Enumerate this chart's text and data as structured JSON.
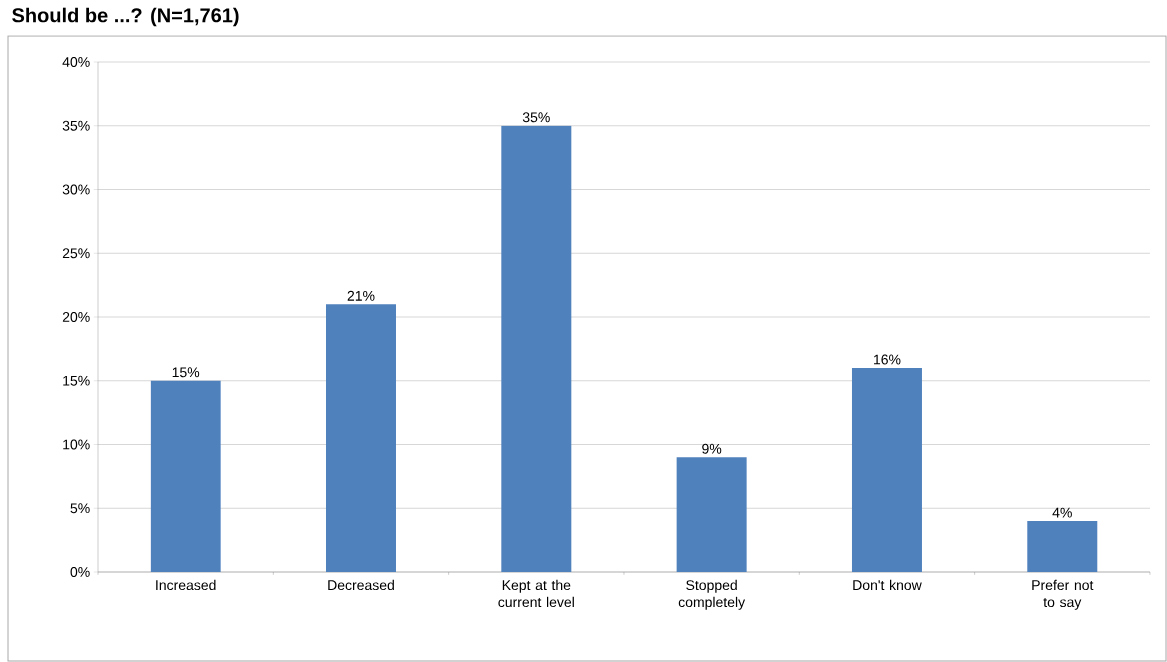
{
  "chart_data": {
    "type": "bar",
    "title": "Should be ...? (N=1,761)",
    "categories": [
      "Increased",
      "Decreased",
      "Kept at the current level",
      "Stopped completely",
      "Don't know",
      "Prefer not to say"
    ],
    "values": [
      15,
      21,
      35,
      9,
      16,
      4
    ],
    "color": "#4f81bd",
    "value_labels": [
      "15%",
      "21%",
      "35%",
      "9%",
      "16%",
      "4%"
    ],
    "ylim": [
      0,
      40
    ],
    "yticks": [
      {
        "value": 0,
        "label": "0%"
      },
      {
        "value": 5,
        "label": "5%"
      },
      {
        "value": 10,
        "label": "10%"
      },
      {
        "value": 15,
        "label": "15%"
      },
      {
        "value": 20,
        "label": "20%"
      },
      {
        "value": 25,
        "label": "25%"
      },
      {
        "value": 30,
        "label": "30%"
      },
      {
        "value": 35,
        "label": "35%"
      },
      {
        "value": 40,
        "label": "40%"
      }
    ],
    "grid": "y"
  }
}
